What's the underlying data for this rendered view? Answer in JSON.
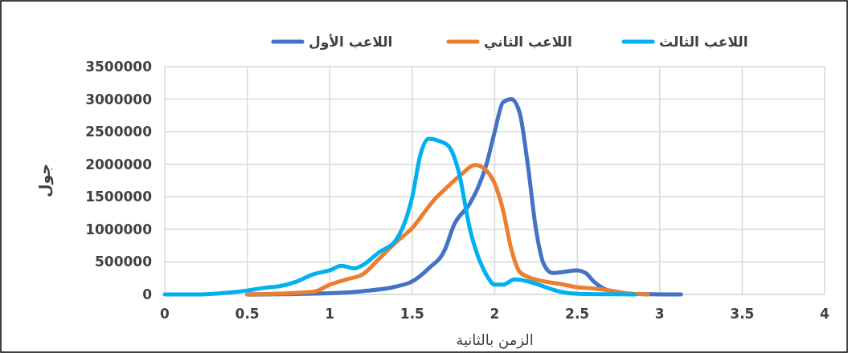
{
  "chart_data": {
    "type": "line",
    "xlabel": "الزمن بالثانية",
    "ylabel": "جول",
    "xlim": [
      0,
      4
    ],
    "xticks": [
      0,
      0.5,
      1,
      1.5,
      2,
      2.5,
      3,
      3.5,
      4
    ],
    "ylim": [
      0,
      3500000
    ],
    "yticks": [
      0,
      500000,
      1000000,
      1500000,
      2000000,
      2500000,
      3000000,
      3500000
    ],
    "grid": true,
    "legend": "top",
    "marker": "none",
    "line_style": "solid",
    "series": [
      {
        "name": "اللاعب الأول",
        "color": "#4472c4",
        "x": [
          0.5,
          1.0,
          1.2,
          1.4,
          1.5,
          1.6,
          1.7,
          1.75,
          1.85,
          1.9,
          1.95,
          2.0,
          2.05,
          2.1,
          2.15,
          2.2,
          2.25,
          2.3,
          2.35,
          2.4,
          2.5,
          2.55,
          2.6,
          2.7,
          2.8,
          3.13
        ],
        "values": [
          0,
          20000,
          50000,
          120000,
          200000,
          400000,
          700000,
          1050000,
          1400000,
          1650000,
          2000000,
          2500000,
          2950000,
          3000000,
          2800000,
          2000000,
          1000000,
          450000,
          330000,
          340000,
          370000,
          330000,
          200000,
          50000,
          10000,
          0
        ]
      },
      {
        "name": "اللاعب  الثاني",
        "color": "#ed7d31",
        "x": [
          0.5,
          0.9,
          1.0,
          1.1,
          1.2,
          1.3,
          1.4,
          1.5,
          1.6,
          1.65,
          1.7,
          1.8,
          1.88,
          1.95,
          2.0,
          2.05,
          2.1,
          2.15,
          2.2,
          2.3,
          2.4,
          2.5,
          2.6,
          2.7,
          2.8,
          2.93
        ],
        "values": [
          0,
          40000,
          150000,
          230000,
          310000,
          550000,
          800000,
          1020000,
          1350000,
          1500000,
          1620000,
          1850000,
          1990000,
          1900000,
          1700000,
          1300000,
          700000,
          350000,
          270000,
          200000,
          160000,
          110000,
          90000,
          60000,
          20000,
          0
        ]
      },
      {
        "name": "اللاعب الثالث",
        "color": "#00b0f0",
        "x": [
          0,
          0.2,
          0.4,
          0.5,
          0.6,
          0.7,
          0.8,
          0.9,
          1.0,
          1.07,
          1.15,
          1.2,
          1.3,
          1.4,
          1.5,
          1.55,
          1.6,
          1.67,
          1.72,
          1.78,
          1.85,
          1.95,
          2.0,
          2.05,
          2.12,
          2.2,
          2.3,
          2.4,
          2.5,
          2.85
        ],
        "values": [
          0,
          0,
          30000,
          60000,
          100000,
          130000,
          200000,
          310000,
          370000,
          440000,
          400000,
          450000,
          650000,
          830000,
          1500000,
          2150000,
          2390000,
          2350000,
          2280000,
          1900000,
          1000000,
          300000,
          150000,
          150000,
          230000,
          200000,
          120000,
          40000,
          10000,
          0
        ]
      }
    ]
  }
}
